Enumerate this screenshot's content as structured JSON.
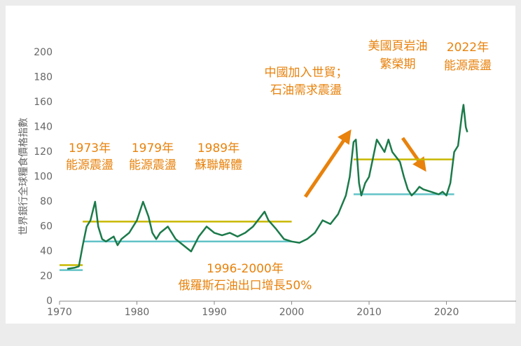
{
  "chart_data": {
    "type": "line",
    "y_label": "世界銀行全球糧食價格指數",
    "x": [
      1971,
      1972,
      1972.5,
      1973,
      1973.5,
      1974,
      1974.6,
      1975,
      1975.5,
      1976,
      1977,
      1977.5,
      1978,
      1979,
      1980,
      1980.8,
      1981.5,
      1982,
      1982.5,
      1983,
      1984,
      1985,
      1986,
      1987,
      1988,
      1989,
      1990,
      1991,
      1992,
      1993,
      1994,
      1995,
      1996,
      1996.5,
      1997,
      1998,
      1999,
      2000,
      2001,
      2002,
      2003,
      2004,
      2005,
      2006,
      2007,
      2007.5,
      2008,
      2008.3,
      2008.7,
      2009,
      2009.5,
      2010,
      2010.5,
      2011,
      2011.5,
      2012,
      2012.5,
      2013,
      2014,
      2014.5,
      2015,
      2015.5,
      2016,
      2016.5,
      2017,
      2018,
      2019,
      2019.5,
      2020,
      2020.5,
      2021,
      2021.5,
      2022,
      2022.2,
      2022.5,
      2022.7
    ],
    "values": [
      26,
      27,
      28,
      45,
      60,
      65,
      80,
      60,
      50,
      48,
      52,
      45,
      50,
      55,
      65,
      80,
      68,
      55,
      50,
      55,
      60,
      50,
      45,
      40,
      52,
      60,
      55,
      53,
      55,
      52,
      55,
      60,
      68,
      72,
      65,
      58,
      50,
      48,
      47,
      50,
      55,
      65,
      62,
      70,
      85,
      100,
      128,
      130,
      95,
      85,
      95,
      100,
      115,
      130,
      125,
      120,
      130,
      120,
      112,
      100,
      90,
      85,
      88,
      92,
      90,
      88,
      86,
      88,
      85,
      95,
      120,
      125,
      150,
      158,
      140,
      136
    ],
    "color": "#1b7a4a",
    "xlim": [
      1970,
      2029
    ],
    "ylim": [
      0,
      200
    ],
    "xticks": [
      1970,
      1980,
      1990,
      2000,
      2010,
      2020
    ],
    "yticks": [
      0,
      20,
      40,
      60,
      80,
      100,
      120,
      140,
      160,
      180,
      200
    ],
    "reference_lines": [
      {
        "x1": 1970,
        "x2": 1973,
        "y": 29,
        "color": "#c9b800"
      },
      {
        "x1": 1970,
        "x2": 1973,
        "y": 25,
        "color": "#62c3c7"
      },
      {
        "x1": 1973,
        "x2": 2000,
        "y": 64,
        "color": "#c9b800"
      },
      {
        "x1": 1973,
        "x2": 2000,
        "y": 48,
        "color": "#62c3c7"
      },
      {
        "x1": 2008,
        "x2": 2021,
        "y": 114,
        "color": "#c9b800"
      },
      {
        "x1": 2008,
        "x2": 2021,
        "y": 86,
        "color": "#62c3c7"
      }
    ],
    "annotations": [
      {
        "lines": [
          "1973年",
          "能源震盪"
        ]
      },
      {
        "lines": [
          "1979年",
          "能源震盪"
        ]
      },
      {
        "lines": [
          "1989年",
          "蘇聯解體"
        ]
      },
      {
        "lines": [
          "中國加入世貿；",
          "石油需求震盪"
        ]
      },
      {
        "lines": [
          "美國頁岩油",
          "繁榮期"
        ]
      },
      {
        "lines": [
          "2022年",
          "能源震盪"
        ]
      },
      {
        "lines": [
          "1996-2000年",
          "俄羅斯石油出口增長50%"
        ]
      }
    ]
  }
}
